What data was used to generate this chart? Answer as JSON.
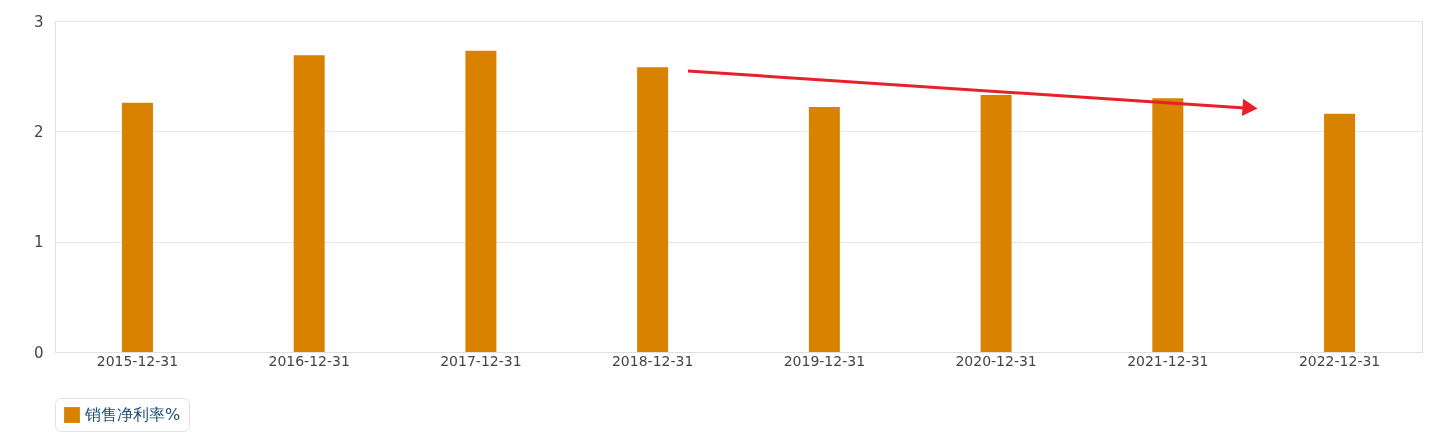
{
  "chart_data": {
    "type": "bar",
    "categories": [
      "2015-12-31",
      "2016-12-31",
      "2017-12-31",
      "2018-12-31",
      "2019-12-31",
      "2020-12-31",
      "2021-12-31",
      "2022-12-31"
    ],
    "series": [
      {
        "name": "销售净利率%",
        "color": "#d98200",
        "values": [
          2.26,
          2.69,
          2.73,
          2.58,
          2.22,
          2.33,
          2.3,
          2.16
        ]
      }
    ],
    "ylim": [
      0,
      3
    ],
    "yticks": [
      0,
      1,
      2,
      3
    ],
    "grid": "y",
    "legend": "bottom"
  }
}
